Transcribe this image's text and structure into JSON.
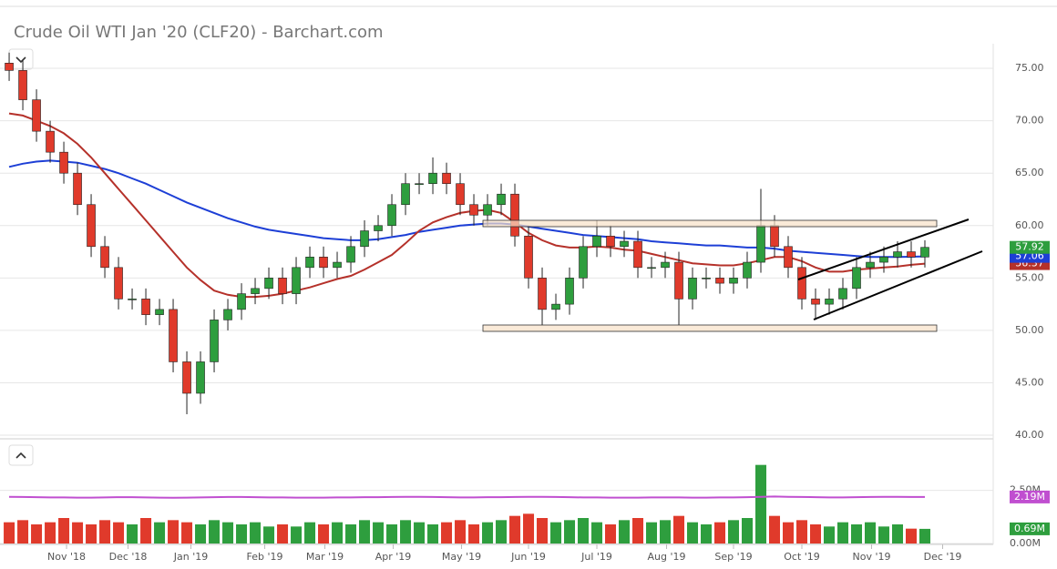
{
  "chart_data": {
    "type": "candlestick",
    "title": "Crude Oil WTI Jan '20 (CLF20) - Barchart.com",
    "xlim": [
      -0.67,
      72
    ],
    "xticks": [
      {
        "value": 4.2,
        "label": "Nov '18"
      },
      {
        "value": 8.7,
        "label": "Dec '18"
      },
      {
        "value": 13.3,
        "label": "Jan '19"
      },
      {
        "value": 18.7,
        "label": "Feb '19"
      },
      {
        "value": 23.1,
        "label": "Mar '19"
      },
      {
        "value": 28.1,
        "label": "Apr '19"
      },
      {
        "value": 33.1,
        "label": "May '19"
      },
      {
        "value": 38,
        "label": "Jun '19"
      },
      {
        "value": 43,
        "label": "Jul '19"
      },
      {
        "value": 48.1,
        "label": "Aug '19"
      },
      {
        "value": 53,
        "label": "Sep '19"
      },
      {
        "value": 58,
        "label": "Oct '19"
      },
      {
        "value": 63.1,
        "label": "Nov '19"
      },
      {
        "value": 68.3,
        "label": "Dec '19"
      }
    ],
    "ylim": [
      39.83,
      77.35
    ],
    "yticks": [
      {
        "value": 40,
        "label": "40.00"
      },
      {
        "value": 45,
        "label": "45.00"
      },
      {
        "value": 50,
        "label": "50.00"
      },
      {
        "value": 55,
        "label": "55.00"
      },
      {
        "value": 60,
        "label": "60.00"
      },
      {
        "value": 65,
        "label": "65.00"
      },
      {
        "value": 70,
        "label": "70.00"
      },
      {
        "value": 75,
        "label": "75.00"
      }
    ],
    "grid": true,
    "ohlc": {
      "up_color": "#2e9e3e",
      "down_color": "#e03a2b",
      "open": [
        75.5,
        74.8,
        72,
        69,
        67,
        65,
        62,
        58,
        56,
        53,
        53,
        51.5,
        52,
        47,
        44,
        47,
        51,
        52,
        53.5,
        54,
        55,
        53.5,
        56,
        57,
        56,
        56.5,
        58,
        59.5,
        60,
        62,
        64,
        64,
        65,
        64,
        62,
        61,
        62,
        63,
        59,
        55,
        52,
        52.5,
        55,
        58,
        59,
        58,
        58.5,
        56,
        56,
        56.5,
        53,
        55,
        55,
        54.5,
        55,
        56.5,
        60,
        58,
        56,
        53,
        52.5,
        53,
        54,
        56,
        56.5,
        57,
        57.5,
        57
      ],
      "high": [
        76.5,
        75.8,
        73,
        70,
        68,
        66,
        63,
        59,
        57,
        54,
        54,
        53,
        53,
        48,
        48,
        52,
        53,
        54.5,
        55,
        56,
        56,
        57,
        58,
        58,
        57.5,
        59,
        60.5,
        61,
        63,
        65,
        65,
        66.5,
        66,
        65,
        63,
        63,
        64,
        64,
        60,
        56,
        53.5,
        56,
        59,
        60.5,
        60,
        59.5,
        59.5,
        57,
        57.5,
        57.5,
        56,
        56,
        56,
        56,
        57.5,
        63.5,
        61,
        59,
        57,
        54,
        54,
        55,
        57,
        57.5,
        58,
        58.5,
        58.5,
        58.6
      ],
      "low": [
        73.8,
        71,
        68,
        66,
        64,
        61,
        57,
        55,
        52,
        52,
        50.5,
        50.5,
        46,
        42,
        43,
        46,
        50,
        51,
        52.5,
        53,
        52.5,
        52.5,
        55,
        55,
        55,
        55.5,
        57,
        58.5,
        59,
        61,
        63,
        63,
        63,
        61,
        60,
        60,
        61,
        58,
        54,
        50.5,
        51,
        51.5,
        54,
        57,
        57,
        57,
        55,
        55,
        55,
        50.5,
        52,
        54,
        53.5,
        53.5,
        54,
        55.5,
        57,
        55,
        52,
        51,
        51.5,
        52,
        53,
        55,
        55.5,
        56,
        56,
        56
      ],
      "close": [
        74.8,
        72,
        69,
        67,
        65,
        62,
        58,
        56,
        53,
        53,
        51.5,
        52,
        47,
        44,
        47,
        51,
        52,
        53.5,
        54,
        55,
        53.5,
        56,
        57,
        56,
        56.5,
        58,
        59.5,
        60,
        62,
        64,
        64,
        65,
        64,
        62,
        61,
        62,
        63,
        59,
        55,
        52,
        52.5,
        55,
        58,
        59,
        58,
        58.5,
        56,
        56,
        56.5,
        53,
        55,
        55,
        54.5,
        55,
        56.5,
        60,
        58,
        56,
        53,
        52.5,
        53,
        54,
        56,
        56.5,
        57,
        57.5,
        57,
        57.92
      ]
    },
    "lines": [
      {
        "color": "#1d3fd6",
        "values": [
          65.6,
          65.9,
          66.1,
          66.2,
          66.1,
          66,
          65.7,
          65.4,
          65,
          64.5,
          64,
          63.4,
          62.8,
          62.2,
          61.7,
          61.2,
          60.7,
          60.3,
          59.9,
          59.6,
          59.4,
          59.2,
          59,
          58.8,
          58.7,
          58.6,
          58.6,
          58.7,
          58.9,
          59.1,
          59.4,
          59.6,
          59.8,
          60,
          60.1,
          60.2,
          60.2,
          60.1,
          59.9,
          59.7,
          59.5,
          59.3,
          59.1,
          59,
          58.9,
          58.8,
          58.7,
          58.5,
          58.4,
          58.3,
          58.2,
          58.1,
          58.1,
          58,
          57.9,
          57.9,
          57.8,
          57.6,
          57.5,
          57.4,
          57.3,
          57.2,
          57.1,
          57,
          57,
          57,
          57.03,
          57.06
        ]
      },
      {
        "color": "#b5312a",
        "values": [
          70.7,
          70.5,
          70,
          69.5,
          68.8,
          67.8,
          66.5,
          65,
          63.5,
          62,
          60.5,
          59,
          57.5,
          56,
          54.8,
          53.8,
          53.4,
          53.2,
          53.2,
          53.3,
          53.5,
          53.8,
          54.1,
          54.5,
          54.9,
          55.2,
          55.8,
          56.5,
          57.2,
          58.3,
          59.5,
          60.3,
          60.8,
          61.2,
          61.4,
          61.5,
          61.2,
          60.3,
          59.3,
          58.6,
          58.1,
          57.9,
          57.9,
          58,
          57.9,
          57.7,
          57.6,
          57.3,
          57,
          56.7,
          56.4,
          56.3,
          56.2,
          56.2,
          56.4,
          56.7,
          57,
          57,
          56.6,
          56,
          55.6,
          55.6,
          55.8,
          55.9,
          56,
          56.1,
          56.25,
          56.37
        ]
      }
    ],
    "volume": {
      "ylim": [
        0,
        4.8
      ],
      "yticks": [
        {
          "value": 0,
          "label": "0.00M"
        },
        {
          "value": 2.5,
          "label": "2.50M"
        }
      ],
      "values": [
        1.0,
        1.1,
        0.9,
        1.0,
        1.2,
        1.0,
        0.9,
        1.1,
        1.0,
        0.9,
        1.2,
        1.0,
        1.1,
        1.0,
        0.9,
        1.1,
        1.0,
        0.9,
        1.0,
        0.8,
        0.9,
        0.8,
        1.0,
        0.9,
        1.0,
        0.9,
        1.1,
        1.0,
        0.9,
        1.1,
        1.0,
        0.9,
        1.0,
        1.1,
        0.9,
        1.0,
        1.1,
        1.3,
        1.4,
        1.2,
        1.0,
        1.1,
        1.2,
        1.0,
        0.9,
        1.1,
        1.2,
        1.0,
        1.1,
        1.3,
        1.0,
        0.9,
        1.0,
        1.1,
        1.2,
        3.7,
        1.3,
        1.0,
        1.1,
        0.9,
        0.8,
        1.0,
        0.9,
        1.0,
        0.8,
        0.9,
        0.7,
        0.69
      ],
      "value_labels": [
        null,
        null,
        null,
        null,
        null,
        null,
        null,
        null,
        null,
        null,
        null,
        null,
        null,
        null,
        null,
        null,
        null,
        null,
        null,
        null,
        null,
        null,
        null,
        null,
        null,
        null,
        null,
        null,
        null,
        null,
        null,
        null,
        null,
        null,
        null,
        null,
        null,
        null,
        null,
        null,
        null,
        null,
        null,
        null,
        null,
        null,
        null,
        null,
        null,
        null,
        null,
        null,
        null,
        null,
        null,
        null,
        null,
        null,
        null,
        null,
        null,
        null,
        null,
        null,
        null,
        null,
        null,
        "0.69M"
      ],
      "ma": {
        "color": "#c04fd0",
        "values": [
          2.2,
          2.19,
          2.18,
          2.17,
          2.17,
          2.16,
          2.16,
          2.17,
          2.18,
          2.18,
          2.17,
          2.16,
          2.15,
          2.16,
          2.17,
          2.18,
          2.19,
          2.19,
          2.18,
          2.17,
          2.17,
          2.16,
          2.16,
          2.16,
          2.17,
          2.17,
          2.18,
          2.18,
          2.19,
          2.2,
          2.2,
          2.19,
          2.18,
          2.17,
          2.17,
          2.18,
          2.18,
          2.19,
          2.2,
          2.2,
          2.19,
          2.18,
          2.17,
          2.17,
          2.16,
          2.16,
          2.16,
          2.17,
          2.17,
          2.17,
          2.16,
          2.16,
          2.17,
          2.17,
          2.18,
          2.2,
          2.21,
          2.2,
          2.19,
          2.18,
          2.17,
          2.17,
          2.18,
          2.19,
          2.2,
          2.2,
          2.19,
          2.19
        ],
        "value_labels": [
          null,
          null,
          null,
          null,
          null,
          null,
          null,
          null,
          null,
          null,
          null,
          null,
          null,
          null,
          null,
          null,
          null,
          null,
          null,
          null,
          null,
          null,
          null,
          null,
          null,
          null,
          null,
          null,
          null,
          null,
          null,
          null,
          null,
          null,
          null,
          null,
          null,
          null,
          null,
          null,
          null,
          null,
          null,
          null,
          null,
          null,
          null,
          null,
          null,
          null,
          null,
          null,
          null,
          null,
          null,
          null,
          null,
          null,
          null,
          null,
          null,
          null,
          null,
          null,
          null,
          null,
          null,
          "2.19M"
        ]
      }
    }
  }
}
